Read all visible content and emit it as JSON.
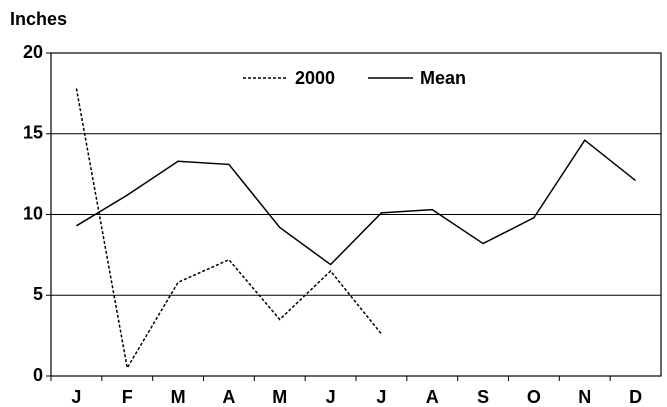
{
  "chart_data": {
    "type": "line",
    "y_label": "Inches",
    "categories": [
      "J",
      "F",
      "M",
      "A",
      "M",
      "J",
      "J",
      "A",
      "S",
      "O",
      "N",
      "D"
    ],
    "series": [
      {
        "name": "2000",
        "color": "#000000",
        "dash": "dotted",
        "values": [
          17.8,
          0.5,
          5.8,
          7.2,
          3.5,
          6.5,
          2.6,
          null,
          null,
          null,
          null,
          null
        ]
      },
      {
        "name": "Mean",
        "color": "#000000",
        "dash": "solid",
        "values": [
          9.3,
          11.2,
          13.3,
          13.1,
          9.2,
          6.9,
          10.1,
          10.3,
          8.2,
          9.8,
          14.6,
          12.1
        ]
      }
    ],
    "ylim": [
      0,
      20
    ],
    "yticks": [
      0,
      5,
      10,
      15,
      20
    ],
    "grid": true,
    "legend": "top"
  }
}
